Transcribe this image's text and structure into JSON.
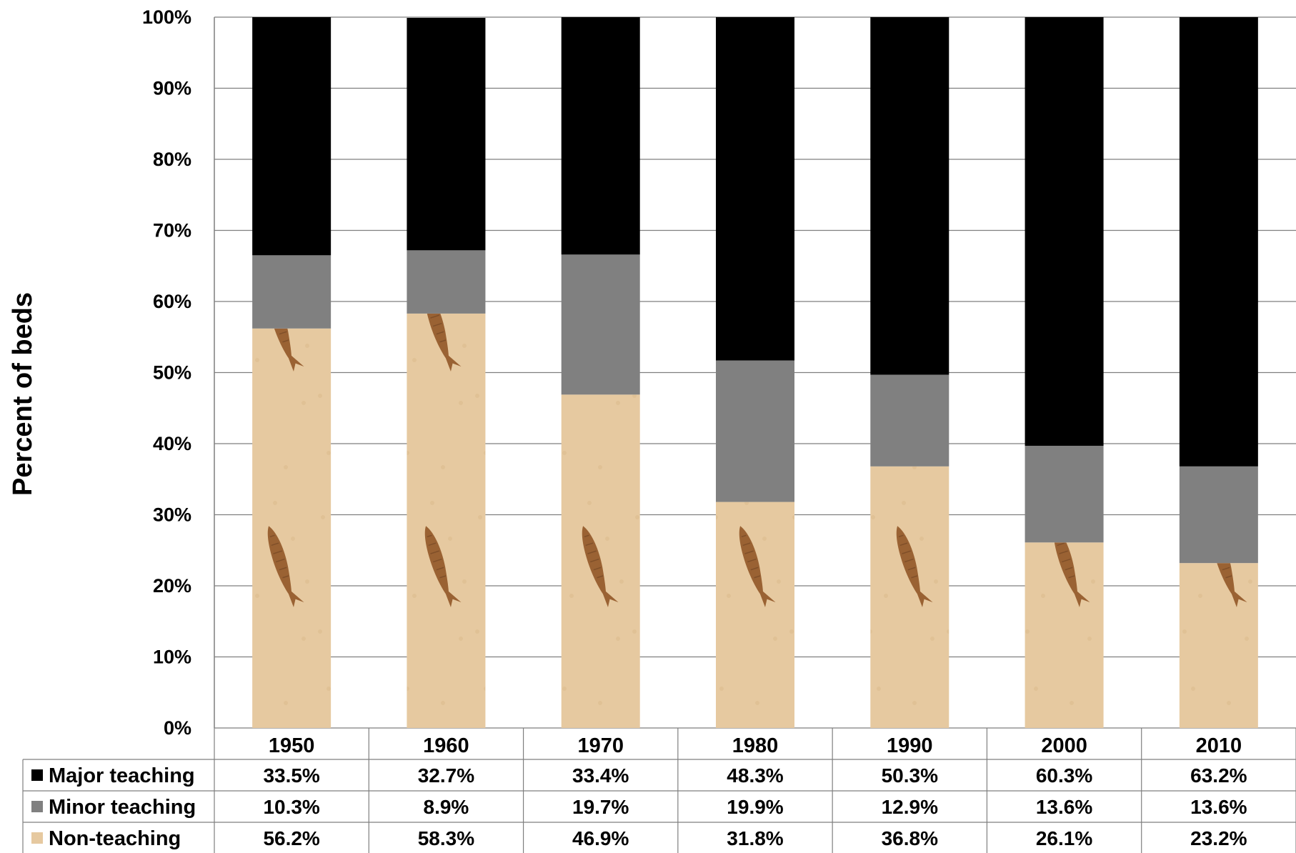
{
  "chart_data": {
    "type": "bar",
    "stacked": true,
    "percent_stacked": true,
    "categories": [
      "1950",
      "1960",
      "1970",
      "1980",
      "1990",
      "2000",
      "2010"
    ],
    "series": [
      {
        "name": "Non-teaching",
        "values": [
          56.2,
          58.3,
          46.9,
          31.8,
          36.8,
          26.1,
          23.2
        ],
        "labels": [
          "56.2%",
          "58.3%",
          "46.9%",
          "31.8%",
          "36.8%",
          "26.1%",
          "23.2%"
        ],
        "color": "#e6c9a0",
        "fill_style": "fish-fossil-texture"
      },
      {
        "name": "Minor teaching",
        "values": [
          10.3,
          8.9,
          19.7,
          19.9,
          12.9,
          13.6,
          13.6
        ],
        "labels": [
          "10.3%",
          "8.9%",
          "19.7%",
          "19.9%",
          "12.9%",
          "13.6%",
          "13.6%"
        ],
        "color": "#808080"
      },
      {
        "name": "Major teaching",
        "values": [
          33.5,
          32.7,
          33.4,
          48.3,
          50.3,
          60.3,
          63.2
        ],
        "labels": [
          "33.5%",
          "32.7%",
          "33.4%",
          "48.3%",
          "50.3%",
          "60.3%",
          "63.2%"
        ],
        "color": "#000000"
      }
    ],
    "table_row_order": [
      "Major teaching",
      "Minor teaching",
      "Non-teaching"
    ],
    "ylabel": "Percent of beds",
    "xlabel": "",
    "title": "",
    "ylim": [
      0,
      100
    ],
    "y_ticks": [
      "0%",
      "10%",
      "20%",
      "30%",
      "40%",
      "50%",
      "60%",
      "70%",
      "80%",
      "90%",
      "100%"
    ],
    "grid": true,
    "legend": "data-table-below",
    "gridline_color": "#7f7f7f",
    "texture_base_color": "#e6c9a0",
    "texture_fish_color": "#9a6233"
  }
}
